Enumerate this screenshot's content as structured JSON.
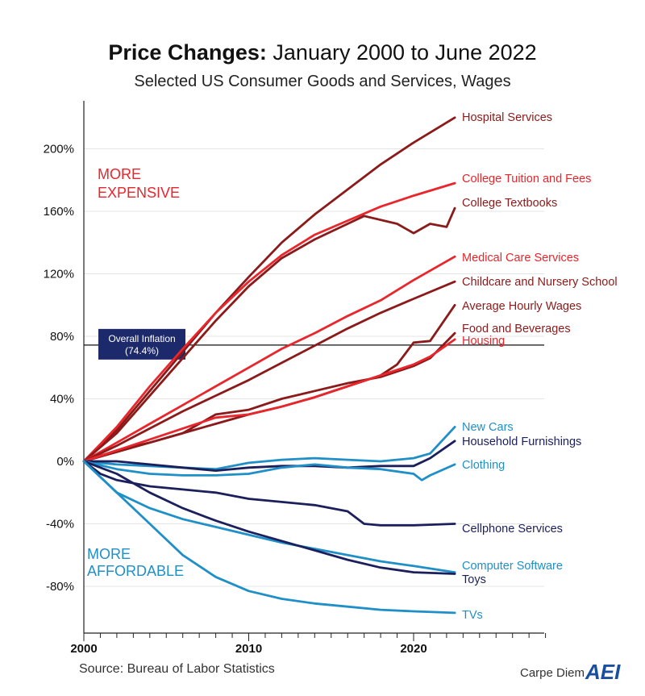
{
  "header": {
    "title_bold": "Price Changes:",
    "title_rest": "January 2000 to June 2022",
    "subtitle": "Selected US Consumer Goods and Services, Wages"
  },
  "footer": {
    "source": "Source: Bureau of Labor Statistics",
    "brand": "Carpe Diem",
    "logo": "AEI"
  },
  "colors": {
    "dark_red": "#8b1a1a",
    "red": "#e8262c",
    "navy": "#1b1f5c",
    "blue": "#1f8fc8",
    "inflation_box": "#1c2a6b"
  },
  "chart_data": {
    "type": "line",
    "xlabel": "",
    "ylabel": "",
    "xlim": [
      2000,
      2028
    ],
    "ylim": [
      -110,
      230
    ],
    "x_ticks": [
      2000,
      2010,
      2020
    ],
    "y_ticks": [
      -80,
      -40,
      0,
      40,
      80,
      120,
      160,
      200
    ],
    "y_tick_labels": [
      "-80%",
      "-40%",
      "0%",
      "40%",
      "80%",
      "120%",
      "160%",
      "200%"
    ],
    "reference_line": {
      "value": 74.4,
      "label_line1": "Overall Inflation",
      "label_line2": "(74.4%)"
    },
    "annotations": {
      "more_expensive_line1": "MORE",
      "more_expensive_line2": "EXPENSIVE",
      "more_affordable_line1": "MORE",
      "more_affordable_line2": "AFFORDABLE"
    },
    "series": [
      {
        "name": "Hospital Services",
        "color": "#8b1a1a",
        "points": [
          [
            2000,
            0
          ],
          [
            2002,
            20
          ],
          [
            2004,
            45
          ],
          [
            2006,
            70
          ],
          [
            2008,
            95
          ],
          [
            2010,
            118
          ],
          [
            2012,
            140
          ],
          [
            2014,
            158
          ],
          [
            2016,
            174
          ],
          [
            2018,
            190
          ],
          [
            2020,
            204
          ],
          [
            2022.5,
            220
          ]
        ]
      },
      {
        "name": "College Tuition and Fees",
        "color": "#e8262c",
        "points": [
          [
            2000,
            0
          ],
          [
            2002,
            22
          ],
          [
            2004,
            48
          ],
          [
            2006,
            72
          ],
          [
            2008,
            95
          ],
          [
            2010,
            115
          ],
          [
            2012,
            132
          ],
          [
            2014,
            145
          ],
          [
            2016,
            154
          ],
          [
            2018,
            163
          ],
          [
            2020,
            170
          ],
          [
            2022.5,
            178
          ]
        ]
      },
      {
        "name": "College Textbooks",
        "color": "#8b1a1a",
        "points": [
          [
            2000,
            0
          ],
          [
            2002,
            18
          ],
          [
            2004,
            42
          ],
          [
            2006,
            66
          ],
          [
            2008,
            90
          ],
          [
            2010,
            112
          ],
          [
            2012,
            130
          ],
          [
            2014,
            142
          ],
          [
            2016,
            152
          ],
          [
            2017,
            157
          ],
          [
            2019,
            152
          ],
          [
            2020,
            146
          ],
          [
            2021,
            152
          ],
          [
            2022,
            150
          ],
          [
            2022.5,
            162
          ]
        ]
      },
      {
        "name": "Medical Care Services",
        "color": "#e8262c",
        "points": [
          [
            2000,
            0
          ],
          [
            2002,
            12
          ],
          [
            2004,
            24
          ],
          [
            2006,
            36
          ],
          [
            2008,
            48
          ],
          [
            2010,
            60
          ],
          [
            2012,
            72
          ],
          [
            2014,
            82
          ],
          [
            2016,
            93
          ],
          [
            2018,
            103
          ],
          [
            2020,
            116
          ],
          [
            2022.5,
            131
          ]
        ]
      },
      {
        "name": "Childcare and Nursery School",
        "color": "#8b1a1a",
        "points": [
          [
            2000,
            0
          ],
          [
            2002,
            10
          ],
          [
            2004,
            21
          ],
          [
            2006,
            32
          ],
          [
            2008,
            42
          ],
          [
            2010,
            52
          ],
          [
            2012,
            63
          ],
          [
            2014,
            74
          ],
          [
            2016,
            85
          ],
          [
            2018,
            95
          ],
          [
            2020,
            104
          ],
          [
            2022.5,
            115
          ]
        ]
      },
      {
        "name": "Average Hourly Wages",
        "color": "#8b1a1a",
        "points": [
          [
            2000,
            0
          ],
          [
            2002,
            7
          ],
          [
            2004,
            12
          ],
          [
            2006,
            18
          ],
          [
            2008,
            24
          ],
          [
            2010,
            30
          ],
          [
            2012,
            35
          ],
          [
            2014,
            41
          ],
          [
            2016,
            48
          ],
          [
            2018,
            55
          ],
          [
            2019,
            62
          ],
          [
            2020,
            76
          ],
          [
            2021,
            77
          ],
          [
            2022.5,
            100
          ]
        ]
      },
      {
        "name": "Food and Beverages",
        "color": "#8b1a1a",
        "points": [
          [
            2000,
            0
          ],
          [
            2002,
            6
          ],
          [
            2004,
            12
          ],
          [
            2006,
            18
          ],
          [
            2008,
            30
          ],
          [
            2010,
            33
          ],
          [
            2012,
            40
          ],
          [
            2014,
            45
          ],
          [
            2016,
            50
          ],
          [
            2018,
            54
          ],
          [
            2020,
            61
          ],
          [
            2021,
            66
          ],
          [
            2022.5,
            82
          ]
        ]
      },
      {
        "name": "Housing",
        "color": "#e8262c",
        "points": [
          [
            2000,
            0
          ],
          [
            2002,
            7
          ],
          [
            2004,
            14
          ],
          [
            2006,
            21
          ],
          [
            2008,
            28
          ],
          [
            2010,
            30
          ],
          [
            2012,
            35
          ],
          [
            2014,
            41
          ],
          [
            2016,
            48
          ],
          [
            2018,
            55
          ],
          [
            2020,
            62
          ],
          [
            2021,
            67
          ],
          [
            2022.5,
            78
          ]
        ]
      },
      {
        "name": "New Cars",
        "color": "#1f8fc8",
        "points": [
          [
            2000,
            0
          ],
          [
            2002,
            -2
          ],
          [
            2004,
            -3
          ],
          [
            2006,
            -4
          ],
          [
            2008,
            -5
          ],
          [
            2010,
            -1
          ],
          [
            2012,
            1
          ],
          [
            2014,
            2
          ],
          [
            2016,
            1
          ],
          [
            2018,
            0
          ],
          [
            2020,
            2
          ],
          [
            2021,
            5
          ],
          [
            2022.5,
            22
          ]
        ]
      },
      {
        "name": "Household Furnishings",
        "color": "#1b1f5c",
        "points": [
          [
            2000,
            0
          ],
          [
            2002,
            0
          ],
          [
            2004,
            -2
          ],
          [
            2006,
            -4
          ],
          [
            2008,
            -6
          ],
          [
            2010,
            -4
          ],
          [
            2012,
            -3
          ],
          [
            2014,
            -3
          ],
          [
            2016,
            -4
          ],
          [
            2018,
            -3
          ],
          [
            2020,
            -3
          ],
          [
            2021,
            2
          ],
          [
            2022.5,
            13
          ]
        ]
      },
      {
        "name": "Clothing",
        "color": "#1f8fc8",
        "points": [
          [
            2000,
            0
          ],
          [
            2002,
            -5
          ],
          [
            2004,
            -8
          ],
          [
            2006,
            -9
          ],
          [
            2008,
            -9
          ],
          [
            2010,
            -8
          ],
          [
            2012,
            -4
          ],
          [
            2014,
            -2
          ],
          [
            2016,
            -4
          ],
          [
            2018,
            -5
          ],
          [
            2020,
            -8
          ],
          [
            2020.5,
            -12
          ],
          [
            2021,
            -9
          ],
          [
            2022.5,
            -2
          ]
        ]
      },
      {
        "name": "Cellphone Services",
        "color": "#1b1f5c",
        "points": [
          [
            2000,
            0
          ],
          [
            2001,
            -8
          ],
          [
            2002,
            -12
          ],
          [
            2004,
            -16
          ],
          [
            2006,
            -18
          ],
          [
            2008,
            -20
          ],
          [
            2010,
            -24
          ],
          [
            2012,
            -26
          ],
          [
            2014,
            -28
          ],
          [
            2016,
            -32
          ],
          [
            2017,
            -40
          ],
          [
            2018,
            -41
          ],
          [
            2020,
            -41
          ],
          [
            2022.5,
            -40
          ]
        ]
      },
      {
        "name": "Computer Software",
        "color": "#1f8fc8",
        "points": [
          [
            2000,
            0
          ],
          [
            2002,
            -20
          ],
          [
            2004,
            -30
          ],
          [
            2006,
            -37
          ],
          [
            2008,
            -42
          ],
          [
            2010,
            -47
          ],
          [
            2012,
            -52
          ],
          [
            2014,
            -56
          ],
          [
            2016,
            -60
          ],
          [
            2018,
            -64
          ],
          [
            2020,
            -67
          ],
          [
            2022.5,
            -71
          ]
        ]
      },
      {
        "name": "Toys",
        "color": "#1b1f5c",
        "points": [
          [
            2000,
            0
          ],
          [
            2002,
            -8
          ],
          [
            2004,
            -20
          ],
          [
            2006,
            -30
          ],
          [
            2008,
            -38
          ],
          [
            2010,
            -45
          ],
          [
            2012,
            -51
          ],
          [
            2014,
            -57
          ],
          [
            2016,
            -63
          ],
          [
            2018,
            -68
          ],
          [
            2020,
            -71
          ],
          [
            2022.5,
            -72
          ]
        ]
      },
      {
        "name": "TVs",
        "color": "#1f8fc8",
        "points": [
          [
            2000,
            0
          ],
          [
            2002,
            -20
          ],
          [
            2004,
            -40
          ],
          [
            2006,
            -60
          ],
          [
            2008,
            -74
          ],
          [
            2010,
            -83
          ],
          [
            2012,
            -88
          ],
          [
            2014,
            -91
          ],
          [
            2016,
            -93
          ],
          [
            2018,
            -95
          ],
          [
            2020,
            -96
          ],
          [
            2022.5,
            -97
          ]
        ]
      }
    ]
  }
}
